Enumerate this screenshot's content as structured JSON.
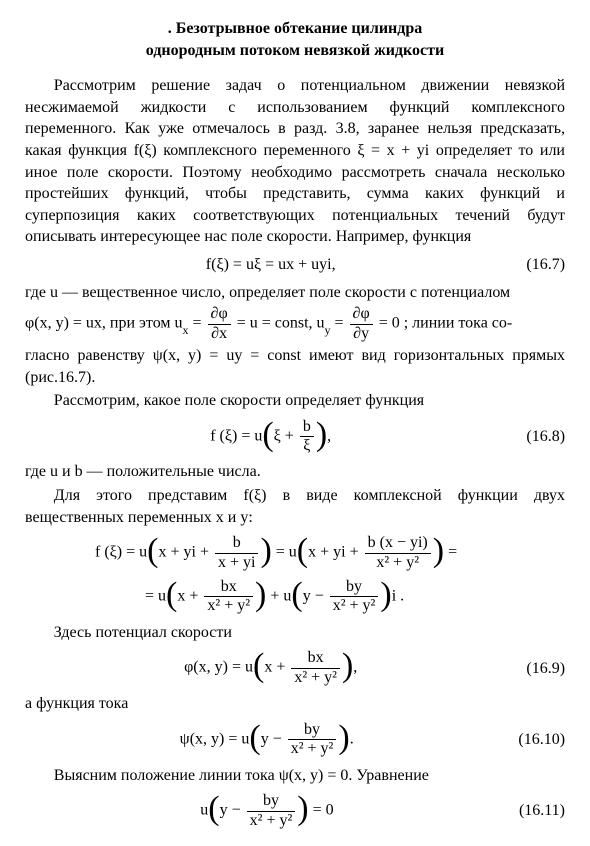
{
  "title": {
    "line1": ". Безотрывное обтекание цилиндра",
    "line2": "однородным потоком невязкой жидкости"
  },
  "p1a": "Рассмотрим решение задач о потенциальном движении невязкой несжимаемой жидкости с использованием функций комплексного переменного. Как уже отмечалось в разд. 3.8, заранее нельзя предсказать, какая функция ",
  "p1b": " комплексного переменного ξ = x + yi определяет то или иное поле скорости. Поэтому необходимо рассмотреть сначала несколько простейших функций, чтобы представить, сумма каких функций и суперпозиция каких соответствующих потенциальных течений будут описывать интересующее нас поле скорости. Например, функция",
  "fxi": "f(ξ)",
  "eq7": {
    "expr": "f(ξ) = uξ = ux + uyi,",
    "num": "(16.7)"
  },
  "p2a": "где u — вещественное число, определяет поле скорости с потенциалом",
  "p2b_pre": "φ(x, y) = ux, при этом  u",
  "p2b_x": "x",
  "p2b_mid1": " = ",
  "frac_dphidx_n": "∂φ",
  "frac_dphidx_d": "∂x",
  "p2b_mid2": " = u = const,  u",
  "p2b_y": "y",
  "p2b_mid3": " = ",
  "frac_dphidy_n": "∂φ",
  "frac_dphidy_d": "∂y",
  "p2b_post": " = 0 ;  линии  тока  со-",
  "p2c": "гласно равенству ψ(x, y) = uy = const имеют вид горизонтальных прямых (рис.16.7).",
  "p3": "Рассмотрим, какое поле скорости определяет функция",
  "eq8_pre": "f (ξ) = u",
  "eq8_inside1": "ξ + ",
  "eq8_frac_n": "b",
  "eq8_frac_d": "ξ",
  "eq8_num": "(16.8)",
  "p4": "где u и b — положительные числа.",
  "p5a": "Для этого представим ",
  "p5b": " в виде комплексной функции двух вещественных переменных x и y:",
  "eqA_pre": "f (ξ) = u",
  "eqA_in1a": "x + yi + ",
  "eqA_f1_n": "b",
  "eqA_f1_d": "x + yi",
  "eqA_mid": " = u",
  "eqA_in2a": "x + yi + ",
  "eqA_f2_n": "b (x − yi)",
  "eqA_f2_d": "x² + y²",
  "eqA_end": " =",
  "eqB_pre": "= u",
  "eqB_in1a": "x + ",
  "eqB_f1_n": "bx",
  "eqB_f1_d": "x² + y²",
  "eqB_mid": " + u",
  "eqB_in2a": "y − ",
  "eqB_f2_n": "by",
  "eqB_f2_d": "x² + y²",
  "eqB_end": "i .",
  "p6": "Здесь потенциал скорости",
  "eq9_pre": "φ(x, y) = u",
  "eq9_in": "x + ",
  "eq9_f_n": "bx",
  "eq9_f_d": "x² + y²",
  "eq9_num": "(16.9)",
  "p7": "а функция тока",
  "eq10_pre": "ψ(x, y) = u",
  "eq10_in": "y − ",
  "eq10_f_n": "by",
  "eq10_f_d": "x² + y²",
  "eq10_num": "(16.10)",
  "p8": "Выясним положение линии тока ψ(x, y) = 0. Уравнение",
  "eq11_pre": "u",
  "eq11_in": "y − ",
  "eq11_f_n": "by",
  "eq11_f_d": "x² + y²",
  "eq11_post": " = 0",
  "eq11_num": "(16.11)"
}
